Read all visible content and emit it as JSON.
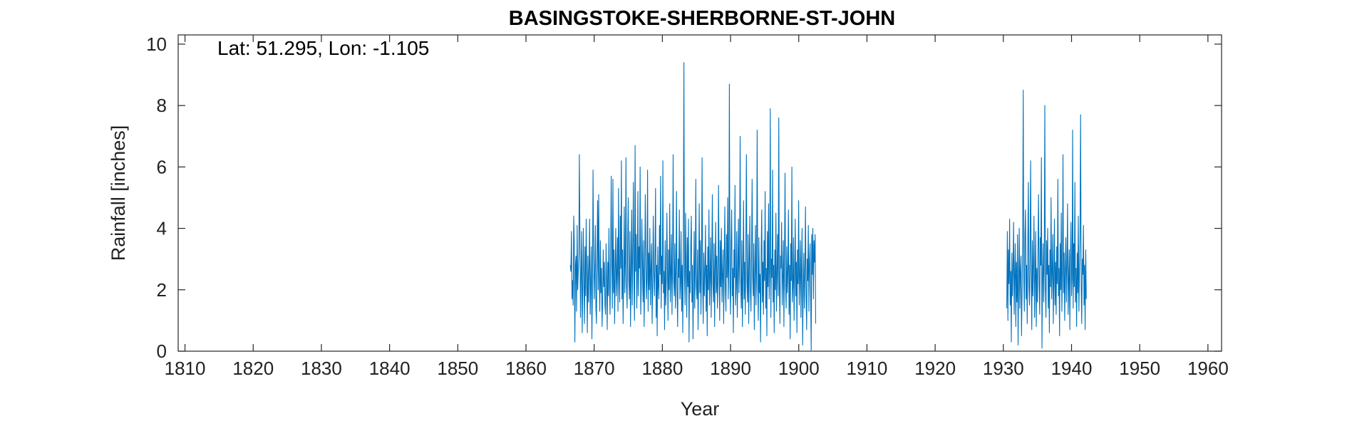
{
  "chart_data": {
    "type": "line",
    "title": "BASINGSTOKE-SHERBORNE-ST-JOHN",
    "annotation": "Lat: 51.295, Lon: -1.105",
    "xlabel": "Year",
    "ylabel": "Rainfall [inches]",
    "xlim": [
      1809,
      1962
    ],
    "ylim": [
      0,
      10.3
    ],
    "xticks": [
      1810,
      1820,
      1830,
      1840,
      1850,
      1860,
      1870,
      1880,
      1890,
      1900,
      1910,
      1920,
      1930,
      1940,
      1950,
      1960
    ],
    "yticks": [
      0,
      2,
      4,
      6,
      8,
      10
    ],
    "grid": false,
    "series": [
      {
        "color": "#0072BD",
        "segments": [
          {
            "start": 1866.5,
            "step": 0.0833,
            "values": [
              2.8,
              2.6,
              3.9,
              1.7,
              2.3,
              1.5,
              4.4,
              3.5,
              0.3,
              2.8,
              3.1,
              1.3,
              4.1,
              2.0,
              2.6,
              3.2,
              6.4,
              3.7,
              1.1,
              2.5,
              3.9,
              0.6,
              2.1,
              4.0,
              2.2,
              0.9,
              3.4,
              1.8,
              4.3,
              2.4,
              0.6,
              3.1,
              1.6,
              2.7,
              4.3,
              1.2,
              2.2,
              3.4,
              0.4,
              2.1,
              5.9,
              3.0,
              1.7,
              2.6,
              4.1,
              1.4,
              0.9,
              3.2,
              4.9,
              2.0,
              5.1,
              2.4,
              1.3,
              3.6,
              1.9,
              2.7,
              0.8,
              1.7,
              3.3,
              2.1,
              2.9,
              1.5,
              1.2,
              3.5,
              2.3,
              0.7,
              2.9,
              1.8,
              4.0,
              2.2,
              1.2,
              3.1,
              5.7,
              2.7,
              1.4,
              5.6,
              1.9,
              3.3,
              0.9,
              2.6,
              4.0,
              1.8,
              2.5,
              3.7,
              1.3,
              5.3,
              2.4,
              1.6,
              4.4,
              2.7,
              6.2,
              1.7,
              3.3,
              0.9,
              2.5,
              4.7,
              1.9,
              2.9,
              6.3,
              2.1,
              1.4,
              3.6,
              5.0,
              2.3,
              1.7,
              3.9,
              0.8,
              2.6,
              4.6,
              1.5,
              3.1,
              5.5,
              2.2,
              1.0,
              6.7,
              2.6,
              3.8,
              1.4,
              2.3,
              5.2,
              1.8,
              3.4,
              2.7,
              6.0,
              1.2,
              2.1,
              4.3,
              2.9,
              1.6,
              3.6,
              0.8,
              2.5,
              5.1,
              3.0,
              1.7,
              2.4,
              5.9,
              1.3,
              3.2,
              2.0,
              4.0,
              1.5,
              2.7,
              3.5,
              0.9,
              2.2,
              4.4,
              2.6,
              1.8,
              3.0,
              5.3,
              1.1,
              2.8,
              0.5,
              3.4,
              2.1,
              1.7,
              4.1,
              2.5,
              5.7,
              1.4,
              3.1,
              2.2,
              6.2,
              1.9,
              2.6,
              0.7,
              3.6,
              1.5,
              2.3,
              4.5,
              2.7,
              1.0,
              3.3,
              2.0,
              4.8,
              1.6,
              2.5,
              3.8,
              1.2,
              2.9,
              6.4,
              2.3,
              1.8,
              3.5,
              1.4,
              2.7,
              5.2,
              2.0,
              0.8,
              3.0,
              2.4,
              4.6,
              1.7,
              2.2,
              3.9,
              1.3,
              2.8,
              0.6,
              3.5,
              9.4,
              2.5,
              1.5,
              4.5,
              2.8,
              1.1,
              3.7,
              2.1,
              4.3,
              0.3,
              2.6,
              1.9,
              3.4,
              4.4,
              1.6,
              2.8,
              0.4,
              2.2,
              3.9,
              1.4,
              2.9,
              5.6,
              2.1,
              1.7,
              3.3,
              0.7,
              2.5,
              4.8,
              1.9,
              3.6,
              1.2,
              2.7,
              6.3,
              2.3,
              0.9,
              3.2,
              1.8,
              2.6,
              4.1,
              1.3,
              2.8,
              0.5,
              3.4,
              2.0,
              4.6,
              1.5,
              2.4,
              3.7,
              1.1,
              2.9,
              5.1,
              2.2,
              1.6,
              3.5,
              0.8,
              2.6,
              4.2,
              1.9,
              3.1,
              1.4,
              2.3,
              5.4,
              2.7,
              1.0,
              3.6,
              2.1,
              4.0,
              1.6,
              2.5,
              3.3,
              0.9,
              2.8,
              4.7,
              2.0,
              1.3,
              3.8,
              2.4,
              5.0,
              1.7,
              2.9,
              8.7,
              2.2,
              1.2,
              3.5,
              4.6,
              1.8,
              2.7,
              0.6,
              3.3,
              2.4,
              5.4,
              1.5,
              2.1,
              3.9,
              1.1,
              2.6,
              4.3,
              1.9,
              3.0,
              7.0,
              2.3,
              1.4,
              3.6,
              0.8,
              2.5,
              4.9,
              1.7,
              2.9,
              1.2,
              3.4,
              6.4,
              2.2,
              1.6,
              3.8,
              0.9,
              2.7,
              4.4,
              2.0,
              1.3,
              3.1,
              5.6,
              2.4,
              1.8,
              3.5,
              0.7,
              2.6,
              4.1,
              1.5,
              2.8,
              7.2,
              2.1,
              1.0,
              3.7,
              1.9,
              2.5,
              0.3,
              3.2,
              4.6,
              1.6,
              2.9,
              1.2,
              3.6,
              2.3,
              5.2,
              1.4,
              2.7,
              0.5,
              3.9,
              2.1,
              4.8,
              1.7,
              2.6,
              7.9,
              1.1,
              3.0,
              2.4,
              5.9,
              1.6,
              2.8,
              0.6,
              3.3,
              2.0,
              4.5,
              1.3,
              2.5,
              3.8,
              1.8,
              7.6,
              2.2,
              0.9,
              3.1,
              2.7,
              4.2,
              1.5,
              2.4,
              3.6,
              0.8,
              2.9,
              5.8,
              2.1,
              1.4,
              3.4,
              1.9,
              2.6,
              4.6,
              1.2,
              2.8,
              0.4,
              3.5,
              2.3,
              6.0,
              1.6,
              2.1,
              3.7,
              1.0,
              2.5,
              4.3,
              1.8,
              2.9,
              0.6,
              3.3,
              2.2,
              4.9,
              1.5,
              2.4,
              3.6,
              1.1,
              2.7,
              4.0,
              0.2,
              2.0,
              3.2,
              1.4,
              2.6,
              4.7,
              1.9,
              0.7,
              3.0,
              2.3,
              4.1,
              1.3,
              2.8,
              3.5,
              2.0,
              0.0,
              3.8,
              2.5,
              4.0,
              1.7,
              3.6,
              2.9,
              3.8,
              0.9
            ]
          },
          {
            "start": 1930.5,
            "step": 0.0833,
            "values": [
              1.4,
              3.9,
              1.0,
              3.3,
              2.2,
              4.3,
              1.5,
              2.6,
              0.3,
              3.2,
              1.8,
              2.7,
              4.2,
              1.2,
              2.4,
              3.5,
              0.8,
              2.9,
              1.6,
              3.8,
              0.2,
              2.3,
              4.0,
              1.4,
              2.6,
              3.1,
              0.5,
              1.9,
              3.5,
              8.5,
              2.4,
              1.3,
              3.8,
              4.6,
              1.7,
              2.8,
              0.9,
              3.4,
              5.5,
              2.1,
              1.5,
              3.2,
              6.2,
              2.5,
              0.7,
              3.6,
              1.8,
              2.9,
              4.4,
              1.1,
              2.3,
              3.9,
              0.8,
              2.7,
              1.6,
              3.3,
              5.1,
              2.2,
              1.2,
              3.7,
              2.8,
              6.3,
              0.1,
              2.4,
              3.5,
              1.6,
              2.9,
              8.0,
              2.0,
              1.1,
              3.6,
              2.5,
              4.0,
              1.4,
              2.8,
              0.6,
              3.3,
              2.1,
              5.0,
              1.7,
              2.6,
              3.8,
              0.9,
              2.3,
              4.3,
              1.5,
              2.9,
              1.2,
              3.4,
              2.2,
              5.6,
              1.8,
              2.7,
              0.5,
              3.5,
              2.0,
              4.5,
              1.3,
              2.5,
              6.4,
              1.9,
              3.2,
              1.0,
              2.6,
              3.7,
              1.6,
              2.8,
              4.8,
              1.2,
              2.3,
              3.3,
              0.7,
              2.9,
              4.2,
              1.8,
              2.4,
              7.2,
              1.4,
              3.5,
              2.1,
              5.5,
              1.6,
              2.7,
              0.8,
              3.2,
              1.9,
              4.4,
              1.3,
              2.6,
              3.8,
              7.7,
              2.2,
              0.9,
              3.0,
              2.5,
              4.1,
              1.5,
              2.8,
              0.7,
              3.3,
              1.7
            ]
          }
        ]
      }
    ]
  }
}
